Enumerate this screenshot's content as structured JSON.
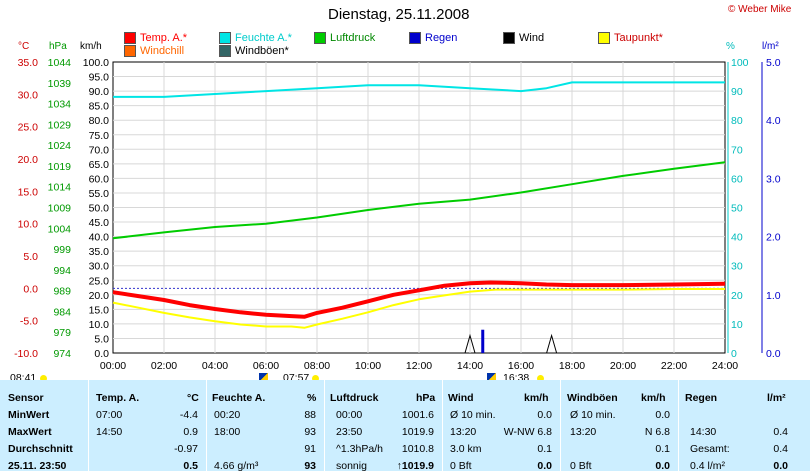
{
  "title": "Dienstag, 25.11.2008",
  "copyright": "© Weber Mike",
  "legend": [
    {
      "label": "Temp. A.*",
      "color": "#ff0000"
    },
    {
      "label": "Feuchte A.*",
      "color": "#00e5e5"
    },
    {
      "label": "Luftdruck",
      "color": "#00cc00"
    },
    {
      "label": "Regen",
      "color": "#0000cc"
    },
    {
      "label": "Wind",
      "color": "#000000"
    },
    {
      "label": "Taupunkt*",
      "color": "#ffff00"
    },
    {
      "label": "Windchill",
      "color": "#ff6600"
    },
    {
      "label": "Windböen*",
      "color": "#336666"
    }
  ],
  "axis_units": {
    "temp": "°C",
    "pressure": "hPa",
    "wind": "km/h",
    "humidity": "%",
    "rain": "l/m²"
  },
  "axes": {
    "temp_ticks": [
      "35.0",
      "30.0",
      "25.0",
      "20.0",
      "15.0",
      "10.0",
      "5.0",
      "0.0",
      "-5.0",
      "-10.0"
    ],
    "pressure_ticks": [
      "1044",
      "1039",
      "1034",
      "1029",
      "1024",
      "1019",
      "1014",
      "1009",
      "1004",
      "999",
      "994",
      "989",
      "984",
      "979",
      "974"
    ],
    "wind_ticks": [
      "100.0",
      "95.0",
      "90.0",
      "85.0",
      "80.0",
      "75.0",
      "70.0",
      "65.0",
      "60.0",
      "55.0",
      "50.0",
      "45.0",
      "40.0",
      "35.0",
      "30.0",
      "25.0",
      "20.0",
      "15.0",
      "10.0",
      "5.0",
      "0.0"
    ],
    "humidity_ticks": [
      "100",
      "90",
      "80",
      "70",
      "60",
      "50",
      "40",
      "30",
      "20",
      "10",
      "0"
    ],
    "rain_ticks": [
      "5.0",
      "4.0",
      "3.0",
      "2.0",
      "1.0",
      "0.0"
    ],
    "time_ticks": [
      "00:00",
      "02:00",
      "04:00",
      "06:00",
      "08:00",
      "10:00",
      "12:00",
      "14:00",
      "16:00",
      "18:00",
      "20:00",
      "22:00",
      "24:00"
    ]
  },
  "sun": {
    "sunrise": "07:57",
    "sunset": "16:38",
    "left_time": "08:41"
  },
  "chart_data": {
    "type": "line",
    "title": "Dienstag, 25.11.2008",
    "x_range": [
      "00:00",
      "24:00"
    ],
    "series": [
      {
        "name": "Temp. A.*",
        "unit": "°C",
        "color": "#ff0000",
        "x": [
          0,
          1,
          2,
          3,
          4,
          5,
          6,
          7,
          7.5,
          8,
          9,
          10,
          11,
          12,
          13,
          14,
          14.8,
          16,
          17,
          18,
          20,
          22,
          24
        ],
        "y": [
          -0.6,
          -1.2,
          -1.8,
          -2.6,
          -3.2,
          -3.7,
          -4.1,
          -4.3,
          -4.4,
          -3.8,
          -3.0,
          -2.0,
          -1.0,
          -0.3,
          0.4,
          0.8,
          0.9,
          0.8,
          0.6,
          0.5,
          0.5,
          0.6,
          0.7
        ]
      },
      {
        "name": "Taupunkt*",
        "unit": "°C",
        "color": "#ffff00",
        "x": [
          0,
          1,
          2,
          3,
          4,
          5,
          6,
          7,
          7.5,
          8,
          9,
          10,
          11,
          12,
          13,
          14,
          15,
          16,
          18,
          20,
          22,
          24
        ],
        "y": [
          -2.2,
          -3.0,
          -3.8,
          -4.5,
          -5.1,
          -5.6,
          -5.9,
          -5.9,
          -6.1,
          -5.6,
          -4.7,
          -3.7,
          -2.6,
          -1.7,
          -1.1,
          -0.5,
          -0.2,
          -0.2,
          -0.2,
          -0.2,
          -0.1,
          -0.1
        ]
      },
      {
        "name": "Feuchte A.*",
        "unit": "%",
        "color": "#00e5e5",
        "x": [
          0,
          2,
          4,
          6,
          8,
          10,
          12,
          14,
          16,
          17,
          18,
          20,
          22,
          24
        ],
        "y": [
          88,
          88,
          89,
          90,
          91,
          92,
          92,
          91,
          90,
          91,
          93,
          93,
          93,
          93
        ]
      },
      {
        "name": "Luftdruck",
        "unit": "hPa",
        "color": "#00cc00",
        "x": [
          0,
          2,
          4,
          6,
          8,
          10,
          12,
          14,
          16,
          18,
          20,
          22,
          24
        ],
        "y": [
          1001.6,
          1003.0,
          1004.3,
          1005.1,
          1006.6,
          1008.4,
          1009.9,
          1010.9,
          1012.6,
          1014.6,
          1016.6,
          1018.3,
          1019.9
        ]
      }
    ],
    "rain_bars": {
      "x": [
        14.5
      ],
      "y": [
        0.4
      ]
    },
    "wind_spikes": {
      "x": [
        14.0,
        17.2
      ],
      "y": [
        6.0,
        6.0
      ]
    }
  },
  "table": {
    "headers": {
      "sensor": "Sensor",
      "temp": "Temp. A.",
      "temp_unit": "°C",
      "hum": "Feuchte A.",
      "hum_unit": "%",
      "press": "Luftdruck",
      "press_unit": "hPa",
      "wind": "Wind",
      "wind_unit": "km/h",
      "gust": "Windböen",
      "gust_unit": "km/h",
      "rain": "Regen",
      "rain_unit": "l/m²"
    },
    "rows": [
      {
        "label": "MinWert",
        "temp_t": "07:00",
        "temp_v": "-4.4",
        "hum_t": "00:20",
        "hum_v": "88",
        "press_t": "00:00",
        "press_v": "1001.6",
        "wind_t": "Ø 10 min.",
        "wind_v": "0.0",
        "gust_t": "Ø 10 min.",
        "gust_v": "0.0",
        "rain_t": "",
        "rain_v": ""
      },
      {
        "label": "MaxWert",
        "temp_t": "14:50",
        "temp_v": "0.9",
        "hum_t": "18:00",
        "hum_v": "93",
        "press_t": "23:50",
        "press_v": "1019.9",
        "wind_t": "13:20",
        "wind_m": "W-NW 6.8",
        "wind_v": "",
        "gust_t": "13:20",
        "gust_m": "N 6.8",
        "gust_v": "",
        "rain_t": "14:30",
        "rain_v": "0.4"
      },
      {
        "label": "Durchschnitt",
        "temp_t": "",
        "temp_v": "-0.97",
        "hum_t": "",
        "hum_v": "91",
        "press_t": "^1.3hPa/h",
        "press_v": "1010.8",
        "wind_t": "3.0 km",
        "wind_v": "0.1",
        "gust_t": "",
        "gust_v": "0.1",
        "rain_t": "Gesamt:",
        "rain_v": "0.4"
      },
      {
        "label": "25.11. 23:50",
        "temp_t": "",
        "temp_v": "0.5",
        "hum_t": "4.66 g/m³",
        "hum_v": "93",
        "press_t": "sonnig",
        "press_v": "↑1019.9",
        "wind_t": "0 Bft",
        "wind_v": "0.0",
        "gust_t": "0 Bft",
        "gust_v": "0.0",
        "rain_t": "0.4 l/m²",
        "rain_v": "0.0"
      }
    ]
  }
}
